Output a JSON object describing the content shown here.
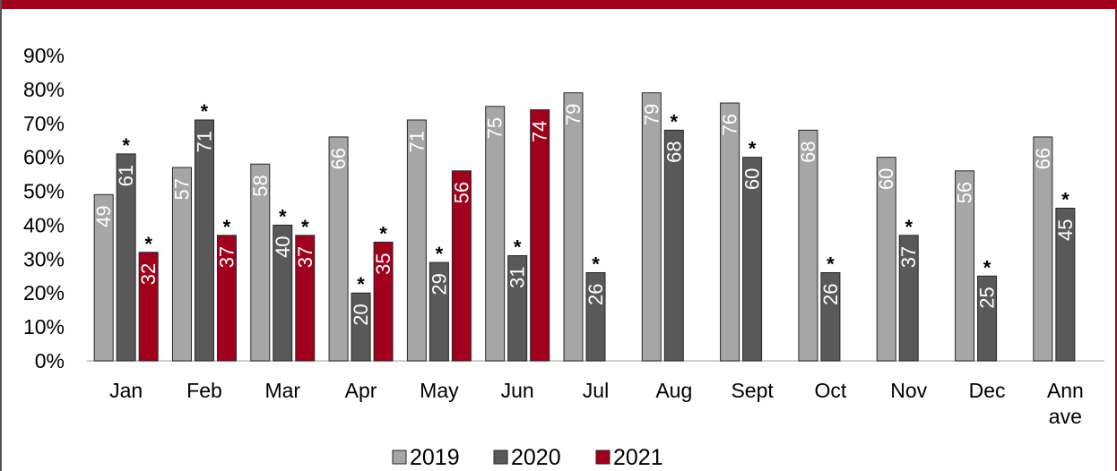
{
  "colors": {
    "accent": "#a0001c",
    "series_2019": "#a6a6a6",
    "series_2020": "#595959",
    "series_2021": "#a0001c"
  },
  "chart_data": {
    "type": "bar",
    "categories": [
      "Jan",
      "Feb",
      "Mar",
      "Apr",
      "May",
      "Jun",
      "Jul",
      "Aug",
      "Sept",
      "Oct",
      "Nov",
      "Dec",
      "Ann ave"
    ],
    "category_lines": [
      [
        "Jan"
      ],
      [
        "Feb"
      ],
      [
        "Mar"
      ],
      [
        "Apr"
      ],
      [
        "May"
      ],
      [
        "Jun"
      ],
      [
        "Jul"
      ],
      [
        "Aug"
      ],
      [
        "Sept"
      ],
      [
        "Oct"
      ],
      [
        "Nov"
      ],
      [
        "Dec"
      ],
      [
        "Ann",
        "ave"
      ]
    ],
    "series": [
      {
        "name": "2019",
        "color": "#a6a6a6",
        "values": [
          49,
          57,
          58,
          66,
          71,
          75,
          79,
          79,
          76,
          68,
          60,
          56,
          66
        ],
        "starred": [
          false,
          false,
          false,
          false,
          false,
          false,
          false,
          false,
          false,
          false,
          false,
          false,
          false
        ]
      },
      {
        "name": "2020",
        "color": "#595959",
        "values": [
          61,
          71,
          40,
          20,
          29,
          31,
          26,
          68,
          60,
          26,
          37,
          25,
          45
        ],
        "starred": [
          true,
          true,
          true,
          true,
          true,
          true,
          true,
          true,
          true,
          true,
          true,
          true,
          true
        ]
      },
      {
        "name": "2021",
        "color": "#a0001c",
        "values": [
          32,
          37,
          37,
          35,
          56,
          74,
          null,
          null,
          null,
          null,
          null,
          null,
          null
        ],
        "starred": [
          true,
          true,
          true,
          true,
          false,
          false,
          false,
          false,
          false,
          false,
          false,
          false,
          false
        ]
      }
    ],
    "y_ticks": [
      "0%",
      "10%",
      "20%",
      "30%",
      "40%",
      "50%",
      "60%",
      "70%",
      "80%",
      "90%"
    ],
    "ylim": [
      0,
      90
    ],
    "star_symbol": "*",
    "legend_position": "bottom",
    "grid": false,
    "title": "",
    "xlabel": "",
    "ylabel": ""
  }
}
